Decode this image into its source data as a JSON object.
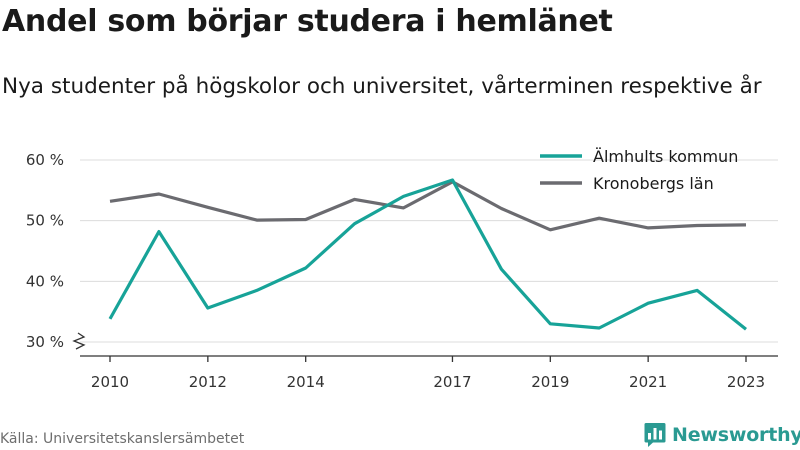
{
  "header": {
    "title": "Andel som börjar studera i hemlänet",
    "subtitle": "Nya studenter på högskolor och universitet, vårterminen respektive år"
  },
  "footer": {
    "source": "Källa: Universitetskanslersämbetet",
    "brand": "Newsworthy",
    "brand_icon": "bar-chart-speech-bubble-icon",
    "brand_color": "#2a9a92"
  },
  "chart_data": {
    "type": "line",
    "title": "Andel som börjar studera i hemlänet",
    "subtitle": "Nya studenter på högskolor och universitet, vårterminen respektive år",
    "x": [
      2010,
      2011,
      2012,
      2013,
      2014,
      2015,
      2016,
      2017,
      2018,
      2019,
      2020,
      2021,
      2022,
      2023
    ],
    "x_ticks": [
      2010,
      2012,
      2014,
      2017,
      2019,
      2021,
      2023
    ],
    "x_tick_labels": [
      "2010",
      "2012",
      "2014",
      "2017",
      "2019",
      "2021",
      "2023"
    ],
    "xlim": [
      2010,
      2023
    ],
    "y_ticks": [
      30,
      40,
      50,
      60
    ],
    "y_tick_labels": [
      "30 %",
      "40 %",
      "50 %",
      "60 %"
    ],
    "ylim": [
      30,
      60
    ],
    "y_axis_break": true,
    "grid": true,
    "legend_position": "top-right",
    "series": [
      {
        "name": "Älmhults kommun",
        "color": "#17a398",
        "values": [
          33.8,
          48.2,
          35.6,
          38.5,
          42.2,
          49.5,
          54.0,
          56.7,
          42.0,
          33.0,
          32.3,
          36.4,
          38.5,
          32.1
        ]
      },
      {
        "name": "Kronobergs län",
        "color": "#6b6b70",
        "values": [
          53.2,
          54.4,
          52.2,
          50.1,
          50.2,
          53.5,
          52.1,
          56.4,
          52.0,
          48.5,
          50.4,
          48.8,
          49.2,
          49.3
        ]
      }
    ]
  }
}
